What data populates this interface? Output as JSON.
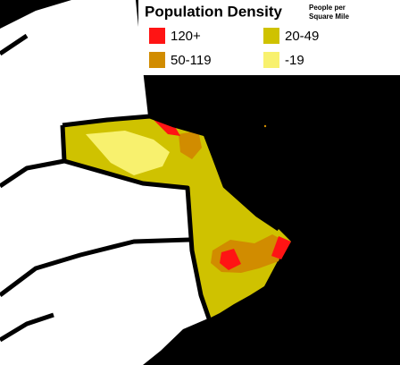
{
  "legend": {
    "title": "Population Density",
    "subtitle": [
      "People per",
      "Square Mile"
    ],
    "items": [
      {
        "label": "120+",
        "color": "#ff1414"
      },
      {
        "label": "20-49",
        "color": "#cfc200"
      },
      {
        "label": "50-119",
        "color": "#d18c00"
      },
      {
        "label": "-19",
        "color": "#f8f16e"
      }
    ]
  }
}
